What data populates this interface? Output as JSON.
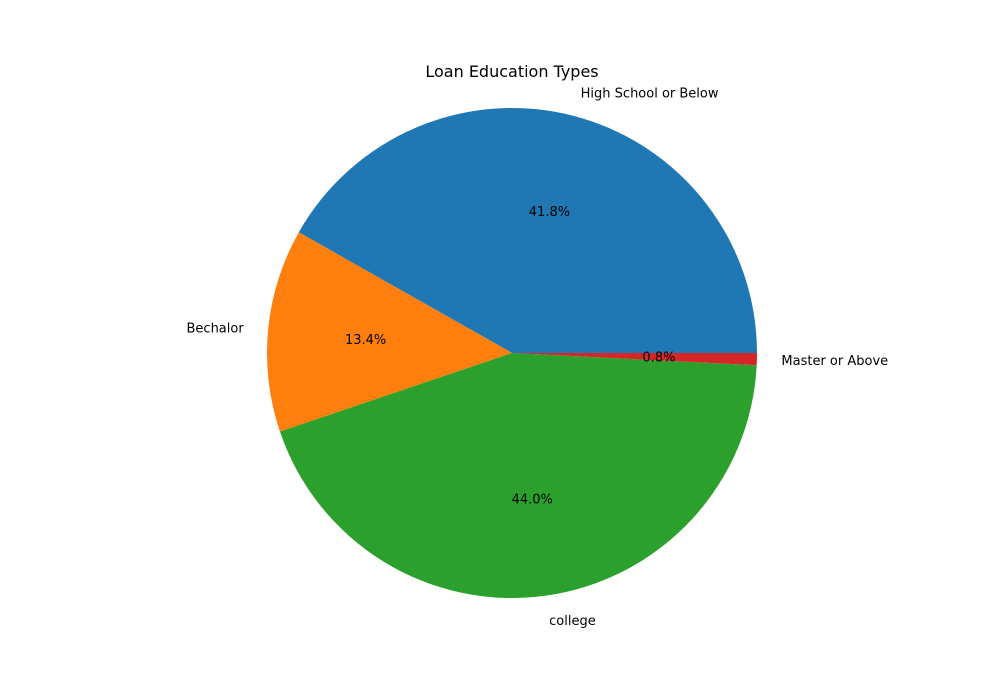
{
  "chart_data": {
    "type": "pie",
    "title": "Loan Education Types",
    "slices": [
      {
        "label": "High School or Below",
        "value": 41.8,
        "pct_label": "41.8%",
        "color": "#1f77b4"
      },
      {
        "label": "Bechalor",
        "value": 13.4,
        "pct_label": "13.4%",
        "color": "#ff7f0e"
      },
      {
        "label": "college",
        "value": 44.0,
        "pct_label": "44.0%",
        "color": "#2ca02c"
      },
      {
        "label": "Master or Above",
        "value": 0.8,
        "pct_label": "0.8%",
        "color": "#d62728"
      }
    ],
    "start_angle_deg": 0,
    "direction": "counterclockwise",
    "legend": "none"
  }
}
